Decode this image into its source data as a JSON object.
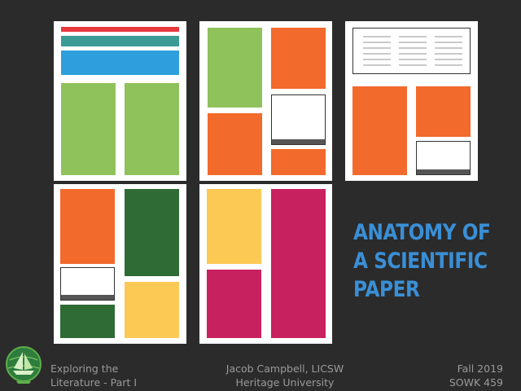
{
  "title": {
    "line1": "ANATOMY OF",
    "line2": "A SCIENTIFIC",
    "line3": "PAPER"
  },
  "footer": {
    "left_line1": "Exploring the",
    "left_line2": "Literature - Part I",
    "center_line1": "Jacob Campbell, LICSW",
    "center_line2": "Heritage University",
    "right_line1": "Fall 2019",
    "right_line2": "SOWK 459"
  },
  "logo_icon": "ship-globe-icon",
  "colors": {
    "background": "#2b2b2b",
    "title": "#3a8fd6",
    "red": "#e8383d",
    "teal": "#3a9a95",
    "blue": "#2e9fdc",
    "green": "#8fc25b",
    "orange": "#f26a2c",
    "dark_green": "#2f6b35",
    "yellow": "#fdc955",
    "magenta": "#c8215f"
  }
}
